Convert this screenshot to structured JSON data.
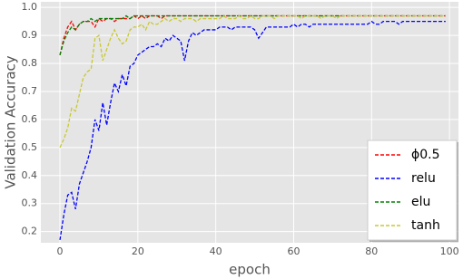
{
  "chart_data": {
    "type": "line",
    "x_label": "epoch",
    "y_label": "Validation Accuracy",
    "x": [
      0,
      1,
      2,
      3,
      4,
      5,
      6,
      7,
      8,
      9,
      10,
      11,
      12,
      13,
      14,
      15,
      16,
      17,
      18,
      19,
      20,
      21,
      22,
      23,
      24,
      25,
      26,
      27,
      28,
      29,
      30,
      31,
      32,
      33,
      34,
      35,
      36,
      37,
      38,
      39,
      40,
      41,
      42,
      43,
      44,
      45,
      46,
      47,
      48,
      49,
      50,
      51,
      52,
      53,
      54,
      55,
      56,
      57,
      58,
      59,
      60,
      61,
      62,
      63,
      64,
      65,
      66,
      67,
      68,
      69,
      70,
      71,
      72,
      73,
      74,
      75,
      76,
      77,
      78,
      79,
      80,
      81,
      82,
      83,
      84,
      85,
      86,
      87,
      88,
      89,
      90,
      91,
      92,
      93,
      94,
      95,
      96,
      97,
      98,
      99
    ],
    "series": [
      {
        "name": "ϕ0.5",
        "color": "#ff0000",
        "values": [
          0.83,
          0.89,
          0.93,
          0.95,
          0.92,
          0.94,
          0.95,
          0.95,
          0.95,
          0.93,
          0.96,
          0.95,
          0.96,
          0.96,
          0.95,
          0.96,
          0.96,
          0.96,
          0.96,
          0.97,
          0.96,
          0.97,
          0.96,
          0.97,
          0.97,
          0.97,
          0.96,
          0.97,
          0.97,
          0.97,
          0.97,
          0.97,
          0.97,
          0.97,
          0.97,
          0.97,
          0.97,
          0.97,
          0.97,
          0.97,
          0.97,
          0.97,
          0.97,
          0.97,
          0.97,
          0.97,
          0.97,
          0.97,
          0.97,
          0.97,
          0.97,
          0.97,
          0.97,
          0.97,
          0.97,
          0.97,
          0.97,
          0.97,
          0.97,
          0.97,
          0.97,
          0.97,
          0.97,
          0.97,
          0.97,
          0.97,
          0.97,
          0.97,
          0.97,
          0.97,
          0.97,
          0.97,
          0.97,
          0.97,
          0.97,
          0.97,
          0.97,
          0.97,
          0.97,
          0.97,
          0.97,
          0.97,
          0.97,
          0.97,
          0.97,
          0.97,
          0.97,
          0.97,
          0.97,
          0.97,
          0.97,
          0.97,
          0.97,
          0.97,
          0.97,
          0.97,
          0.97,
          0.97,
          0.97,
          0.97
        ]
      },
      {
        "name": "relu",
        "color": "#0000ff",
        "values": [
          0.17,
          0.26,
          0.33,
          0.34,
          0.28,
          0.37,
          0.41,
          0.45,
          0.5,
          0.6,
          0.56,
          0.66,
          0.58,
          0.66,
          0.73,
          0.7,
          0.76,
          0.72,
          0.79,
          0.8,
          0.83,
          0.84,
          0.85,
          0.86,
          0.86,
          0.87,
          0.86,
          0.89,
          0.88,
          0.9,
          0.89,
          0.88,
          0.81,
          0.88,
          0.91,
          0.9,
          0.91,
          0.92,
          0.92,
          0.92,
          0.92,
          0.93,
          0.93,
          0.93,
          0.92,
          0.93,
          0.93,
          0.93,
          0.93,
          0.93,
          0.92,
          0.89,
          0.91,
          0.93,
          0.93,
          0.93,
          0.93,
          0.93,
          0.93,
          0.93,
          0.94,
          0.93,
          0.94,
          0.94,
          0.93,
          0.94,
          0.94,
          0.94,
          0.94,
          0.94,
          0.94,
          0.94,
          0.94,
          0.94,
          0.94,
          0.94,
          0.94,
          0.94,
          0.94,
          0.94,
          0.95,
          0.94,
          0.94,
          0.95,
          0.95,
          0.95,
          0.95,
          0.94,
          0.95,
          0.95,
          0.95,
          0.95,
          0.95,
          0.95,
          0.95,
          0.95,
          0.95,
          0.95,
          0.95,
          0.95
        ]
      },
      {
        "name": "elu",
        "color": "#008000",
        "values": [
          0.83,
          0.88,
          0.91,
          0.93,
          0.92,
          0.94,
          0.95,
          0.95,
          0.96,
          0.95,
          0.96,
          0.96,
          0.96,
          0.96,
          0.96,
          0.96,
          0.96,
          0.97,
          0.96,
          0.97,
          0.97,
          0.97,
          0.97,
          0.97,
          0.97,
          0.97,
          0.97,
          0.97,
          0.97,
          0.97,
          0.97,
          0.97,
          0.97,
          0.97,
          0.97,
          0.97,
          0.97,
          0.97,
          0.97,
          0.97,
          0.97,
          0.97,
          0.97,
          0.97,
          0.97,
          0.97,
          0.97,
          0.97,
          0.97,
          0.97,
          0.97,
          0.97,
          0.97,
          0.97,
          0.97,
          0.97,
          0.97,
          0.97,
          0.97,
          0.97,
          0.97,
          0.97,
          0.97,
          0.97,
          0.97,
          0.97,
          0.97,
          0.97,
          0.97,
          0.97,
          0.97,
          0.97,
          0.97,
          0.97,
          0.97,
          0.97,
          0.97,
          0.97,
          0.97,
          0.97,
          0.97,
          0.97,
          0.97,
          0.97,
          0.97,
          0.97,
          0.97,
          0.97,
          0.97,
          0.97,
          0.97,
          0.97,
          0.97,
          0.97,
          0.97,
          0.97,
          0.97,
          0.97,
          0.97,
          0.97
        ]
      },
      {
        "name": "tanh",
        "color": "#c8c832",
        "values": [
          0.5,
          0.53,
          0.57,
          0.64,
          0.63,
          0.69,
          0.75,
          0.77,
          0.78,
          0.89,
          0.9,
          0.81,
          0.85,
          0.89,
          0.92,
          0.89,
          0.87,
          0.88,
          0.92,
          0.93,
          0.93,
          0.94,
          0.92,
          0.95,
          0.94,
          0.94,
          0.95,
          0.96,
          0.95,
          0.96,
          0.96,
          0.95,
          0.96,
          0.96,
          0.96,
          0.95,
          0.96,
          0.96,
          0.96,
          0.96,
          0.96,
          0.96,
          0.97,
          0.96,
          0.96,
          0.96,
          0.97,
          0.96,
          0.96,
          0.97,
          0.96,
          0.96,
          0.97,
          0.97,
          0.97,
          0.96,
          0.97,
          0.97,
          0.97,
          0.97,
          0.97,
          0.97,
          0.96,
          0.97,
          0.97,
          0.97,
          0.97,
          0.96,
          0.97,
          0.97,
          0.97,
          0.96,
          0.97,
          0.97,
          0.97,
          0.97,
          0.97,
          0.97,
          0.97,
          0.97,
          0.97,
          0.97,
          0.97,
          0.97,
          0.97,
          0.97,
          0.97,
          0.97,
          0.97,
          0.97,
          0.97,
          0.97,
          0.97,
          0.97,
          0.97,
          0.97,
          0.97,
          0.97,
          0.97,
          0.97
        ]
      }
    ],
    "xlim": [
      -4.9,
      102.3
    ],
    "ylim": [
      0.16,
      1.02
    ],
    "xticks": [
      0,
      20,
      40,
      60,
      80,
      100
    ],
    "yticks": [
      0.2,
      0.3,
      0.4,
      0.5,
      0.6,
      0.7,
      0.8,
      0.9,
      {
        "value": 1,
        "label": "1.0"
      }
    ],
    "grid": true,
    "legend": "lower right",
    "line_style": "dashed"
  }
}
